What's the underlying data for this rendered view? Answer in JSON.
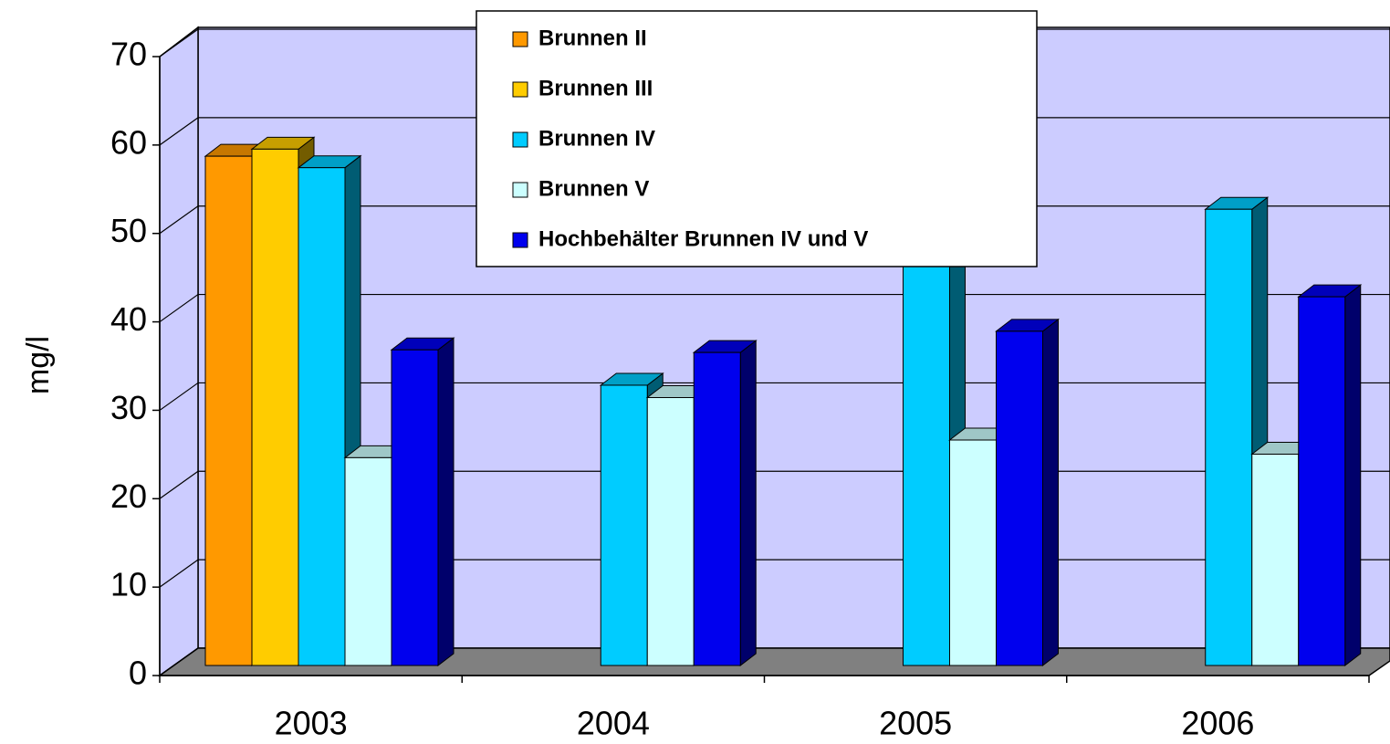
{
  "chart_data": {
    "type": "bar3d",
    "y_label": "mg/l",
    "categories": [
      "2003",
      "2004",
      "2005",
      "2006"
    ],
    "series": [
      {
        "name": "Brunnen II",
        "color": "#ff9900",
        "values": [
          57.6,
          null,
          null,
          null
        ]
      },
      {
        "name": "Brunnen III",
        "color": "#ffcc00",
        "values": [
          58.4,
          null,
          null,
          null
        ]
      },
      {
        "name": "Brunnen IV",
        "color": "#00ccff",
        "values": [
          56.3,
          31.7,
          49,
          51.6
        ]
      },
      {
        "name": "Brunnen V",
        "color": "#ccffff",
        "values": [
          23.5,
          30.3,
          25.5,
          23.9
        ]
      },
      {
        "name": "Hochbehälter Brunnen IV und V",
        "color": "#0000ee",
        "values": [
          35.7,
          35.4,
          37.8,
          41.7
        ]
      }
    ],
    "ylim": [
      0,
      70
    ],
    "yticks": [
      0,
      10,
      20,
      30,
      40,
      50,
      60,
      70
    ],
    "grid": true,
    "legend": "top"
  }
}
